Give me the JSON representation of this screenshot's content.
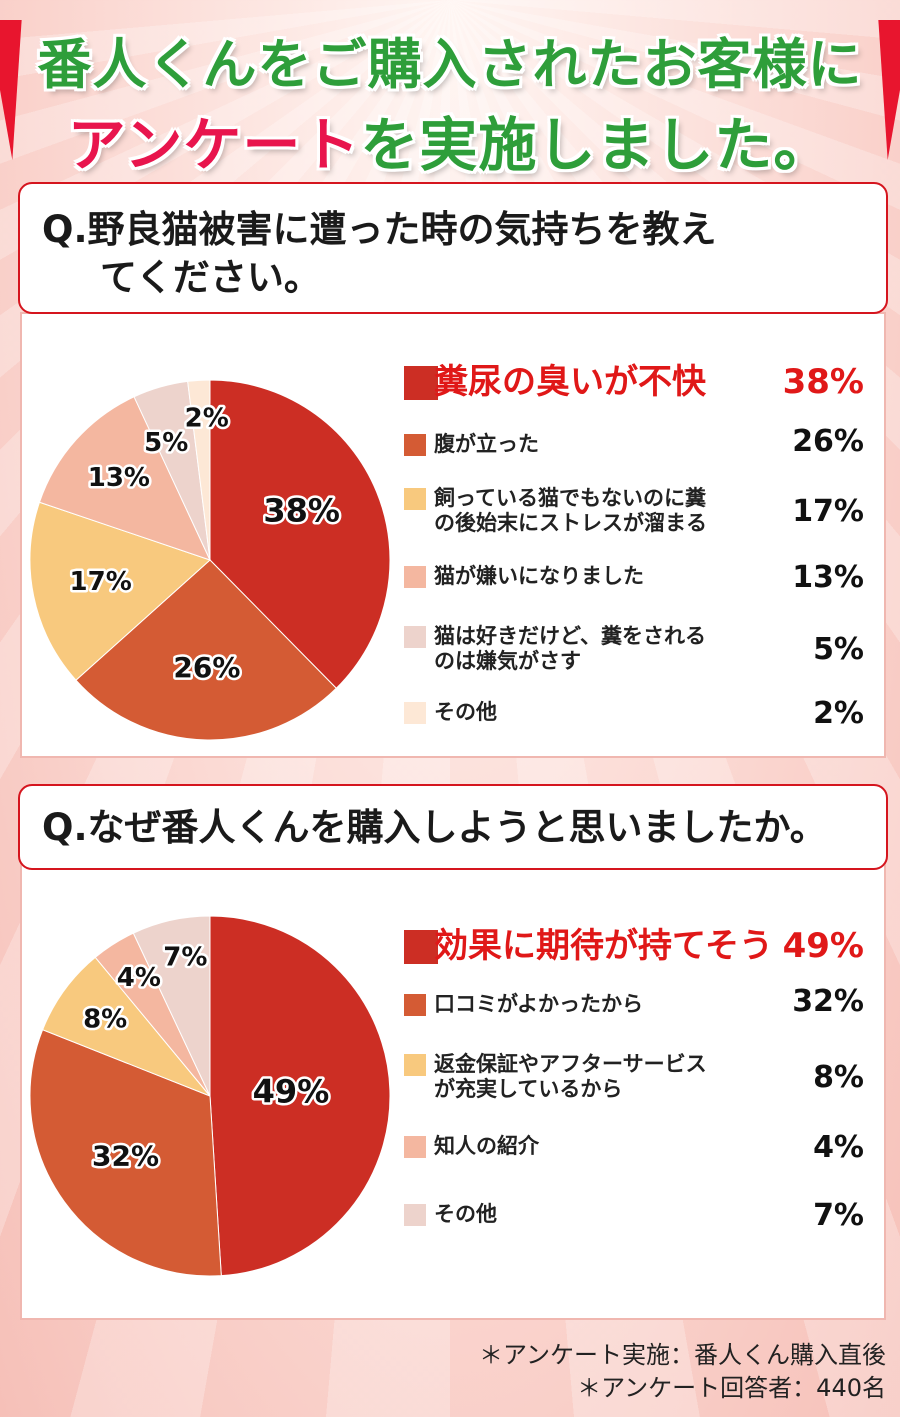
{
  "header": {
    "line1": "番人くんをご購入されたお客様に",
    "line2_pink": "アンケート",
    "line2_green": "を実施しました。"
  },
  "colors": {
    "c1": "#cc2e24",
    "c2": "#d45b34",
    "c3": "#f8c97e",
    "c4": "#f4b7a0",
    "c5": "#edd3cc",
    "c6": "#fde8d6",
    "accent_red": "#e01818",
    "title_green": "#2e9e3a",
    "title_pink": "#e8154d"
  },
  "q1": {
    "question_line1": "Q.野良猫被害に遭った時の気持ちを教え",
    "question_line2": "てください。"
  },
  "q2": {
    "question": "Q.なぜ番人くんを購入しようと思いましたか。"
  },
  "chart_data": [
    {
      "type": "pie",
      "categories": [
        "糞尿の臭いが不快",
        "腹が立った",
        "飼っている猫でもないのに糞の後始末にストレスが溜まる",
        "猫が嫌いになりました",
        "猫は好きだけど、糞をされるのは嫌気がさす",
        "その他"
      ],
      "label_lines": [
        [
          "糞尿の臭いが不快"
        ],
        [
          "腹が立った"
        ],
        [
          "飼っている猫でもないのに糞",
          "の後始末にストレスが溜まる"
        ],
        [
          "猫が嫌いになりました"
        ],
        [
          "猫は好きだけど、糞をされる",
          "のは嫌気がさす"
        ],
        [
          "その他"
        ]
      ],
      "values": [
        38,
        26,
        17,
        13,
        5,
        2
      ],
      "value_labels": [
        "38%",
        "26%",
        "17%",
        "13%",
        "5%",
        "2%"
      ],
      "legend": "right"
    },
    {
      "type": "pie",
      "categories": [
        "効果に期待が持てそう",
        "口コミがよかったから",
        "返金保証やアフターサービスが充実しているから",
        "知人の紹介",
        "その他"
      ],
      "label_lines": [
        [
          "効果に期待が持てそう"
        ],
        [
          "口コミがよかったから"
        ],
        [
          "返金保証やアフターサービス",
          "が充実しているから"
        ],
        [
          "知人の紹介"
        ],
        [
          "その他"
        ]
      ],
      "values": [
        49,
        32,
        8,
        4,
        7
      ],
      "value_labels": [
        "49%",
        "32%",
        "8%",
        "4%",
        "7%"
      ],
      "legend": "right"
    }
  ],
  "footer": {
    "line1": "＊アンケート実施：番人くん購入直後",
    "line2": "＊アンケート回答者：440名"
  }
}
